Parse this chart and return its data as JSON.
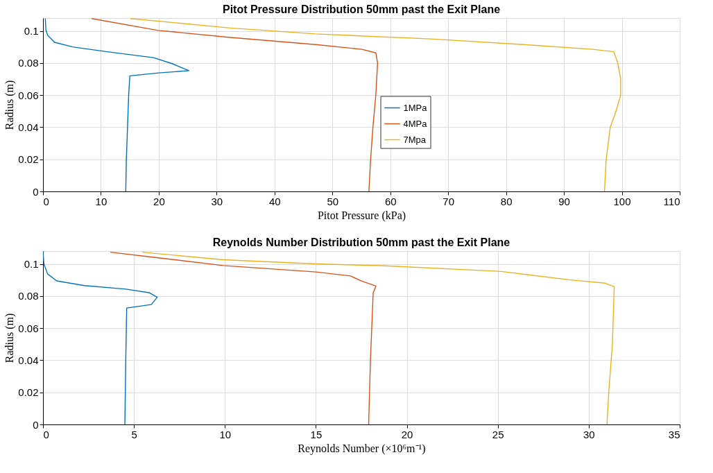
{
  "chart_data": [
    {
      "type": "line",
      "title": "Pitot Pressure Distribution 50mm past the Exit Plane",
      "xlabel": "Pitot Pressure (kPa)",
      "ylabel": "Radius (m)",
      "xlim": [
        0,
        110
      ],
      "xticks": [
        0,
        10,
        20,
        30,
        40,
        50,
        60,
        70,
        80,
        90,
        100,
        110
      ],
      "ylim": [
        0,
        0.108
      ],
      "yticks": [
        0,
        0.02,
        0.04,
        0.06,
        0.08,
        0.1
      ],
      "grid": true,
      "legend": "right",
      "marker": "none",
      "line_style": "solid",
      "series": [
        {
          "name": "1MPa",
          "color": "#0072bd",
          "x": [
            14.3,
            14.4,
            14.6,
            14.8,
            15.0,
            20.0,
            25.2,
            22.3,
            19.1,
            11.1,
            5.1,
            2.0,
            0.8,
            0.5,
            0.4
          ],
          "values": [
            0,
            0.02,
            0.04,
            0.06,
            0.072,
            0.0738,
            0.0752,
            0.0796,
            0.0833,
            0.087,
            0.09,
            0.0929,
            0.0973,
            0.1004,
            0.1077
          ]
        },
        {
          "name": "4MPa",
          "color": "#d95319",
          "x": [
            56.3,
            56.6,
            57.0,
            57.5,
            57.8,
            57.5,
            55.1,
            47.1,
            32.4,
            19.9,
            8.4
          ],
          "values": [
            0,
            0.02,
            0.04,
            0.06,
            0.08,
            0.0863,
            0.0885,
            0.0915,
            0.0959,
            0.1003,
            0.1077
          ]
        },
        {
          "name": "7Mpa",
          "color": "#edb120",
          "x": [
            97.0,
            97.3,
            98.0,
            99.0,
            99.8,
            99.8,
            99.3,
            98.6,
            95.0,
            83.0,
            67.0,
            47.1,
            32.4,
            15.1
          ],
          "values": [
            0,
            0.02,
            0.04,
            0.05,
            0.06,
            0.07,
            0.08,
            0.087,
            0.0885,
            0.0915,
            0.095,
            0.0981,
            0.1018,
            0.1077
          ]
        }
      ]
    },
    {
      "type": "line",
      "title": "Reynolds Number Distribution 50mm past the Exit Plane",
      "xlabel": "Reynolds Number (×10⁶m⁻¹)",
      "ylabel": "Radius (m)",
      "xlim": [
        0,
        35
      ],
      "xticks": [
        0,
        5,
        10,
        15,
        20,
        25,
        30,
        35
      ],
      "ylim": [
        0,
        0.108
      ],
      "yticks": [
        0,
        0.02,
        0.04,
        0.06,
        0.08,
        0.1
      ],
      "grid": true,
      "legend": "right",
      "marker": "none",
      "line_style": "solid",
      "series": [
        {
          "name": "1MPa",
          "color": "#0072bd",
          "x": [
            4.5,
            4.55,
            4.6,
            5.95,
            6.28,
            5.83,
            4.56,
            2.27,
            0.75,
            0.25,
            0.05,
            0.0
          ],
          "values": [
            0,
            0.04,
            0.0725,
            0.0747,
            0.0792,
            0.0821,
            0.0843,
            0.0865,
            0.0894,
            0.0938,
            0.1,
            0.108
          ]
        },
        {
          "name": "4MPa",
          "color": "#d95319",
          "x": [
            17.9,
            18.0,
            18.15,
            18.3,
            17.5,
            16.9,
            15.0,
            9.9,
            6.1,
            3.7
          ],
          "values": [
            0,
            0.04,
            0.082,
            0.0862,
            0.0894,
            0.0925,
            0.095,
            0.099,
            0.1041,
            0.1073
          ]
        },
        {
          "name": "7Mpa",
          "color": "#edb120",
          "x": [
            31.0,
            31.1,
            31.3,
            31.4,
            30.9,
            29.0,
            25.2,
            18.8,
            15.0,
            9.9,
            5.45
          ],
          "values": [
            0,
            0.02,
            0.05,
            0.0858,
            0.088,
            0.09,
            0.0953,
            0.0988,
            0.1,
            0.1026,
            0.1073
          ]
        }
      ]
    }
  ]
}
